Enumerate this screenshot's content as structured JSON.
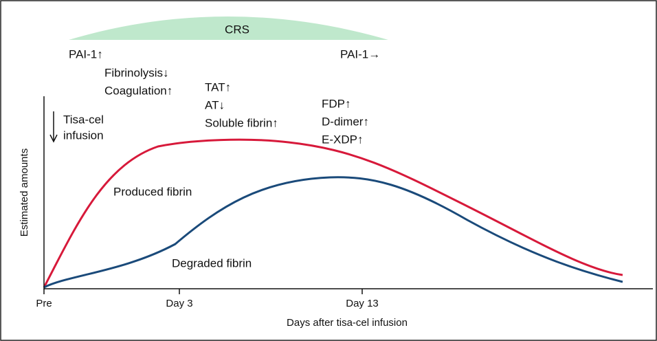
{
  "crs_band": {
    "label": "CRS"
  },
  "annotations": {
    "pai1_up": "PAI-1↑",
    "fibrinolysis": "Fibrinolysis↓",
    "coagulation": "Coagulation↑",
    "tat": "TAT↑",
    "at": "AT↓",
    "soluble_fibrin": "Soluble fibrin↑",
    "pai1_flat": "PAI-1→",
    "fdp": "FDP↑",
    "d_dimer": "D-dimer↑",
    "e_xdp": "E-XDP↑",
    "infusion_line1": "Tisa-cel",
    "infusion_line2": "infusion"
  },
  "curves": {
    "produced": "Produced fibrin",
    "degraded": "Degraded fibrin"
  },
  "axes": {
    "y_label": "Estimated amounts",
    "x_label": "Days after tisa-cel infusion",
    "x_ticks": [
      "Pre",
      "Day 3",
      "Day 13"
    ]
  }
}
